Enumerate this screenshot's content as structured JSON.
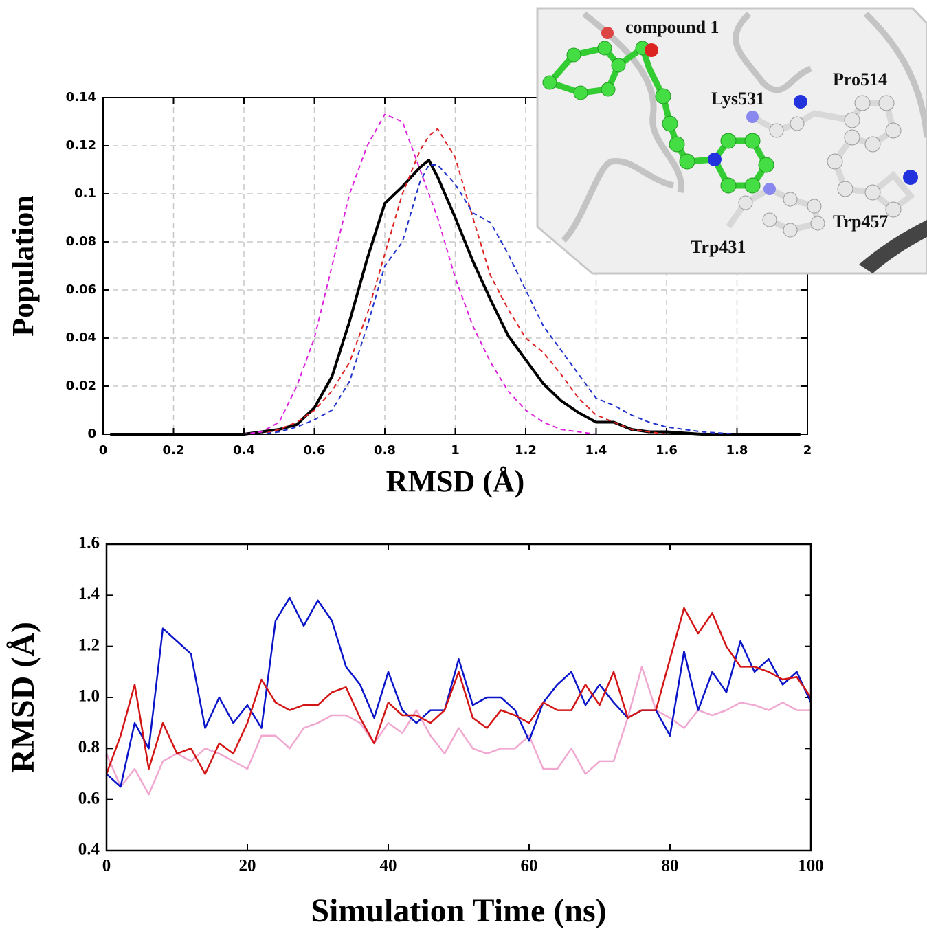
{
  "chart_data": [
    {
      "type": "line",
      "xlabel": "RMSD (Å)",
      "ylabel": "Population",
      "x": [
        0.02,
        0.1,
        0.2,
        0.3,
        0.4,
        0.45,
        0.5,
        0.55,
        0.6,
        0.65,
        0.7,
        0.75,
        0.8,
        0.85,
        0.9,
        0.925,
        0.95,
        1.0,
        1.05,
        1.1,
        1.15,
        1.2,
        1.25,
        1.3,
        1.35,
        1.4,
        1.45,
        1.5,
        1.55,
        1.6,
        1.7,
        1.8,
        1.9,
        1.98
      ],
      "series": [
        {
          "color": "#000000",
          "style": "solid",
          "values": [
            0,
            0,
            0,
            0,
            0,
            0.001,
            0.002,
            0.004,
            0.011,
            0.024,
            0.047,
            0.073,
            0.096,
            0.103,
            0.111,
            0.114,
            0.107,
            0.09,
            0.072,
            0.056,
            0.041,
            0.031,
            0.021,
            0.014,
            0.009,
            0.005,
            0.005,
            0.002,
            0.001,
            0.001,
            0,
            0,
            0,
            0
          ]
        },
        {
          "color": "#dd2222",
          "style": "dashed",
          "values": [
            0,
            0,
            0,
            0,
            0,
            0,
            0.002,
            0.005,
            0.01,
            0.018,
            0.03,
            0.05,
            0.075,
            0.1,
            0.118,
            0.124,
            0.127,
            0.115,
            0.09,
            0.066,
            0.052,
            0.04,
            0.034,
            0.025,
            0.015,
            0.008,
            0.005,
            0.002,
            0.001,
            0,
            0,
            0,
            0,
            0
          ]
        },
        {
          "color": "#2233cc",
          "style": "dashed",
          "values": [
            0,
            0,
            0,
            0,
            0,
            0,
            0.001,
            0.003,
            0.006,
            0.01,
            0.022,
            0.045,
            0.07,
            0.08,
            0.105,
            0.112,
            0.112,
            0.104,
            0.092,
            0.088,
            0.075,
            0.06,
            0.045,
            0.035,
            0.025,
            0.015,
            0.012,
            0.008,
            0.005,
            0.003,
            0.001,
            0,
            0,
            0
          ]
        },
        {
          "color": "#dd22dd",
          "style": "dashed",
          "values": [
            0,
            0,
            0,
            0,
            0,
            0.001,
            0.005,
            0.02,
            0.04,
            0.07,
            0.1,
            0.12,
            0.133,
            0.13,
            0.11,
            0.1,
            0.09,
            0.065,
            0.045,
            0.03,
            0.018,
            0.01,
            0.005,
            0.002,
            0.001,
            0,
            0,
            0,
            0,
            0,
            0,
            0,
            0,
            0
          ]
        }
      ],
      "xlim": [
        0,
        2
      ],
      "xticks": [
        0,
        0.2,
        0.4,
        0.6,
        0.8,
        1,
        1.2,
        1.4,
        1.6,
        1.8,
        2
      ],
      "ylim": [
        0,
        0.14
      ],
      "yticks": [
        0,
        0.02,
        0.04,
        0.06,
        0.08,
        0.1,
        0.12,
        0.14
      ],
      "grid": true
    },
    {
      "type": "line",
      "xlabel": "Simulation Time (ns)",
      "ylabel": "RMSD (Å)",
      "x": [
        0,
        2,
        4,
        6,
        8,
        10,
        12,
        14,
        16,
        18,
        20,
        22,
        24,
        26,
        28,
        30,
        32,
        34,
        36,
        38,
        40,
        42,
        44,
        46,
        48,
        50,
        52,
        54,
        56,
        58,
        60,
        62,
        64,
        66,
        68,
        70,
        72,
        74,
        76,
        78,
        80,
        82,
        84,
        86,
        88,
        90,
        92,
        94,
        96,
        98,
        100
      ],
      "series": [
        {
          "color": "#f0a8d0",
          "style": "solid",
          "values": [
            0.78,
            0.65,
            0.72,
            0.62,
            0.75,
            0.78,
            0.75,
            0.8,
            0.78,
            0.75,
            0.72,
            0.85,
            0.85,
            0.8,
            0.88,
            0.9,
            0.93,
            0.93,
            0.9,
            0.82,
            0.9,
            0.86,
            0.95,
            0.85,
            0.78,
            0.88,
            0.8,
            0.78,
            0.8,
            0.8,
            0.85,
            0.72,
            0.72,
            0.8,
            0.7,
            0.75,
            0.75,
            0.92,
            1.12,
            0.95,
            0.92,
            0.88,
            0.95,
            0.93,
            0.95,
            0.98,
            0.97,
            0.95,
            0.98,
            0.95,
            0.95
          ]
        },
        {
          "color": "#0a14c8",
          "style": "solid",
          "values": [
            0.7,
            0.65,
            0.9,
            0.8,
            1.27,
            1.22,
            1.17,
            0.88,
            1.0,
            0.9,
            0.97,
            0.88,
            1.3,
            1.39,
            1.28,
            1.38,
            1.3,
            1.12,
            1.05,
            0.92,
            1.1,
            0.95,
            0.9,
            0.95,
            0.95,
            1.15,
            0.97,
            1.0,
            1.0,
            0.95,
            0.83,
            0.98,
            1.05,
            1.1,
            0.97,
            1.05,
            0.98,
            0.92,
            0.95,
            0.95,
            0.85,
            1.18,
            0.95,
            1.1,
            1.02,
            1.22,
            1.1,
            1.15,
            1.05,
            1.1,
            0.98
          ]
        },
        {
          "color": "#d21414",
          "style": "solid",
          "values": [
            0.7,
            0.85,
            1.05,
            0.72,
            0.9,
            0.78,
            0.8,
            0.7,
            0.82,
            0.78,
            0.9,
            1.07,
            0.98,
            0.95,
            0.97,
            0.97,
            1.02,
            1.04,
            0.92,
            0.82,
            0.98,
            0.93,
            0.93,
            0.9,
            0.95,
            1.1,
            0.92,
            0.88,
            0.95,
            0.93,
            0.9,
            0.98,
            0.95,
            0.95,
            1.05,
            0.97,
            1.1,
            0.92,
            0.95,
            0.95,
            1.15,
            1.35,
            1.25,
            1.33,
            1.2,
            1.12,
            1.12,
            1.1,
            1.07,
            1.08,
            1.0
          ]
        }
      ],
      "xlim": [
        0,
        100
      ],
      "xticks": [
        0,
        20,
        40,
        60,
        80,
        100
      ],
      "ylim": [
        0.4,
        1.6
      ],
      "yticks": [
        0.4,
        0.6,
        0.8,
        {
          "value": 1,
          "label": "1.0"
        },
        1.2,
        1.4,
        1.6
      ],
      "grid": false
    }
  ],
  "inset": {
    "labels": [
      "compound 1",
      "Lys531",
      "Pro514",
      "Trp457",
      "Trp431"
    ]
  }
}
